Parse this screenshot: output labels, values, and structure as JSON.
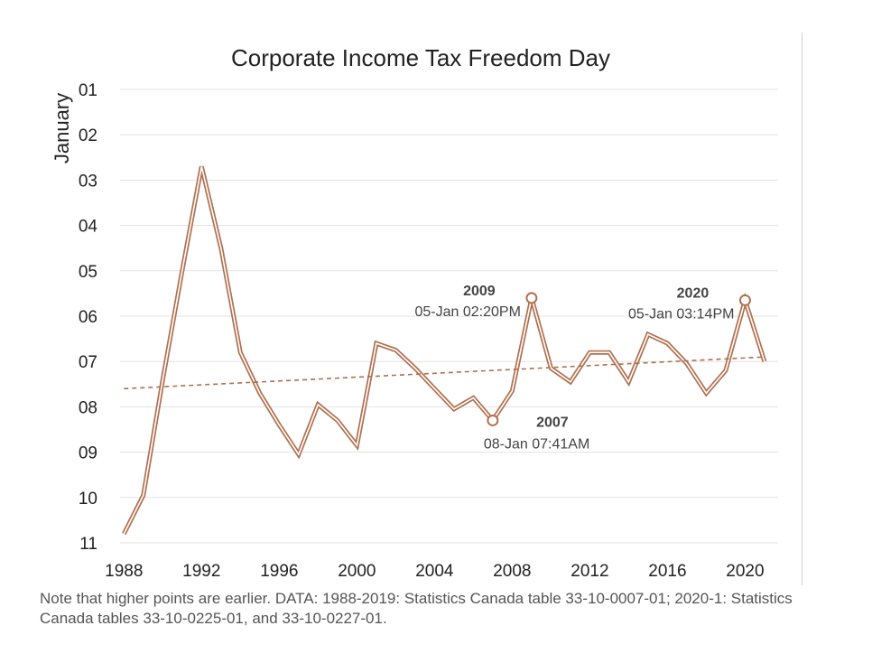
{
  "chart_data": {
    "type": "line",
    "title": "Corporate Income Tax Freedom Day",
    "ylabel": "January",
    "xlabel": "",
    "y_inverted": true,
    "xlim": [
      1987.8,
      2021.7
    ],
    "ylim": [
      1,
      11
    ],
    "x_ticks": [
      1988,
      1992,
      1996,
      2000,
      2004,
      2008,
      2012,
      2016,
      2020
    ],
    "y_ticks": [
      "01",
      "02",
      "03",
      "04",
      "05",
      "06",
      "07",
      "08",
      "09",
      "10",
      "11"
    ],
    "grid": "horizontal",
    "series": [
      {
        "name": "Corporate Income Tax Freedom Day",
        "color": "#b07050",
        "x": [
          1988,
          1989,
          1990,
          1991,
          1992,
          1993,
          1994,
          1995,
          1996,
          1997,
          1998,
          1999,
          2000,
          2001,
          2002,
          2003,
          2004,
          2005,
          2006,
          2007,
          2008,
          2009,
          2010,
          2011,
          2012,
          2013,
          2014,
          2015,
          2016,
          2017,
          2018,
          2019,
          2020,
          2021
        ],
        "y": [
          10.8,
          9.95,
          7.4,
          5.0,
          2.7,
          4.5,
          6.8,
          7.7,
          8.4,
          9.05,
          7.95,
          8.3,
          8.85,
          6.6,
          6.75,
          7.15,
          7.6,
          8.05,
          7.8,
          8.3,
          7.65,
          5.6,
          7.15,
          7.45,
          6.8,
          6.8,
          7.45,
          6.4,
          6.6,
          7.05,
          7.7,
          7.2,
          5.65,
          7.0
        ]
      },
      {
        "name": "Trend",
        "style": "dashed",
        "color": "#b07050",
        "x": [
          1988,
          2021
        ],
        "y": [
          7.6,
          6.9
        ]
      }
    ],
    "annotations": [
      {
        "year_label": "2009",
        "date_label": "05-Jan 02:20PM",
        "x": 2009,
        "y": 5.6,
        "side": "left",
        "marker": "open-circle"
      },
      {
        "year_label": "2007",
        "date_label": "08-Jan 07:41AM",
        "x": 2007,
        "y": 8.3,
        "side": "below",
        "marker": "open-circle"
      },
      {
        "year_label": "2020",
        "date_label": "05-Jan 03:14PM",
        "x": 2020,
        "y": 5.65,
        "side": "left",
        "marker": "open-circle"
      }
    ]
  },
  "note": "Note that higher points are earlier. DATA: 1988-2019: Statistics Canada table 33-10-0007-01; 2020-1: Statistics Canada tables 33-10-0225-01, and 33-10-0227-01."
}
